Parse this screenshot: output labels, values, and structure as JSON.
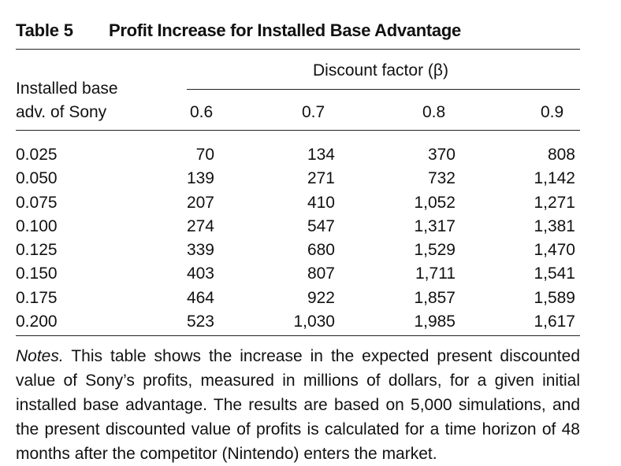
{
  "table": {
    "label": "Table 5",
    "title": "Profit Increase for Installed Base Advantage",
    "row_header_line1": "Installed base",
    "row_header_line2": "adv. of Sony",
    "spanner": "Discount factor (β)",
    "columns": [
      "0.6",
      "0.7",
      "0.8",
      "0.9"
    ],
    "row_labels": [
      "0.025",
      "0.050",
      "0.075",
      "0.100",
      "0.125",
      "0.150",
      "0.175",
      "0.200"
    ],
    "col_values": [
      [
        "70",
        "139",
        "207",
        "274",
        "339",
        "403",
        "464",
        "523"
      ],
      [
        "134",
        "271",
        "410",
        "547",
        "680",
        "807",
        "922",
        "1,030"
      ],
      [
        "370",
        "732",
        "1,052",
        "1,317",
        "1,529",
        "1,711",
        "1,857",
        "1,985"
      ],
      [
        "808",
        "1,142",
        "1,271",
        "1,381",
        "1,470",
        "1,541",
        "1,589",
        "1,617"
      ]
    ]
  },
  "notes": {
    "lead": "Notes.",
    "text": " This table shows the increase in the expected present discounted value of Sony’s profits, measured in millions of dollars, for a given initial installed base advantage. The results are based on 5,000 simulations, and the present discounted value of profits is calculated for a time horizon of 48 months after the competitor (Nintendo) enters the market."
  }
}
